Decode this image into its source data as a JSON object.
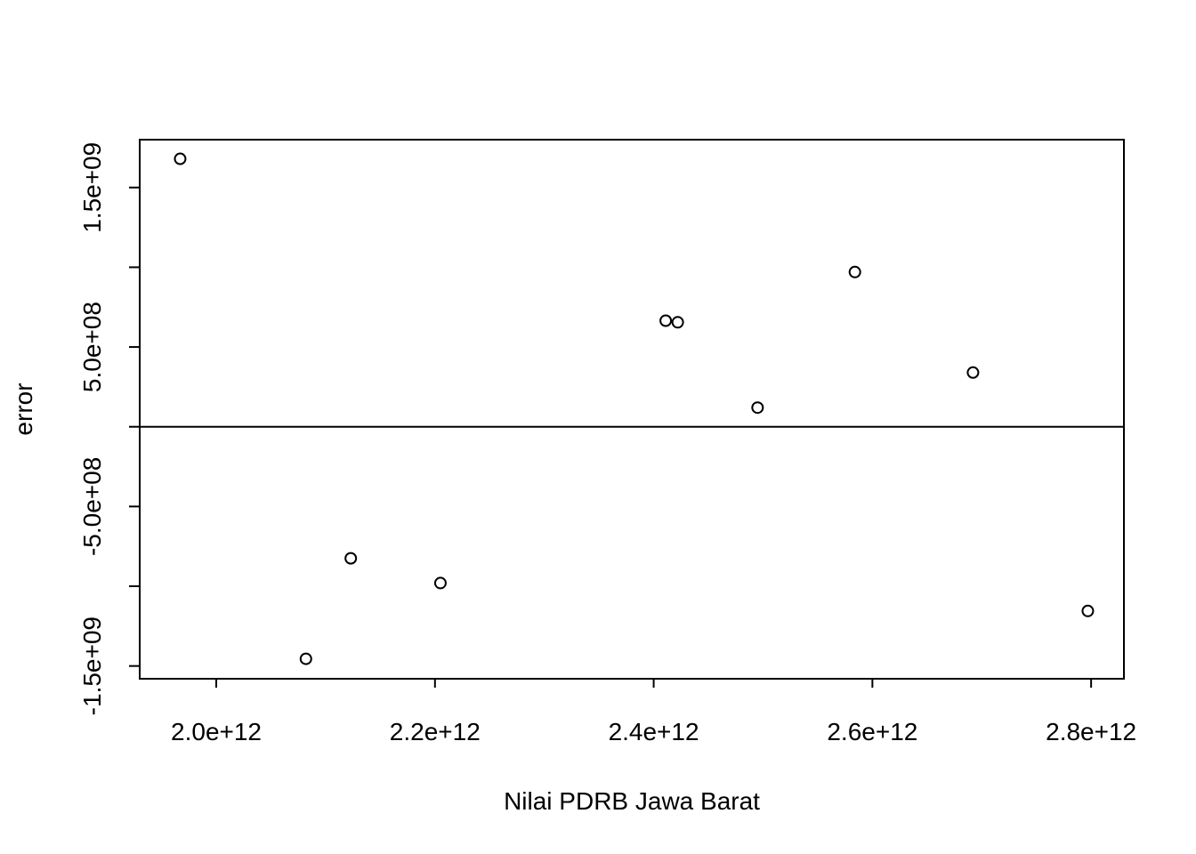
{
  "chart_data": {
    "type": "scatter",
    "title": "",
    "xlabel": "Nilai PDRB Jawa Barat",
    "ylabel": "error",
    "xlim": [
      1930000000000.0,
      2830000000000.0
    ],
    "ylim": [
      -1580000000.0,
      1800000000.0
    ],
    "x_ticks": [
      2000000000000.0,
      2200000000000.0,
      2400000000000.0,
      2600000000000.0,
      2800000000000.0
    ],
    "x_tick_labels": [
      "2.0e+12",
      "2.2e+12",
      "2.4e+12",
      "2.6e+12",
      "2.8e+12"
    ],
    "y_ticks": [
      -1500000000.0,
      -1000000000.0,
      -500000000.0,
      0,
      500000000.0,
      1000000000.0,
      1500000000.0
    ],
    "y_tick_labels": [
      "-1.5e+09",
      "",
      "-5.0e+08",
      "",
      "5.0e+08",
      "",
      "1.5e+09"
    ],
    "hline": 0,
    "grid": false,
    "point_color": "#000000",
    "points": [
      {
        "x": 1967000000000.0,
        "y": 1680000000.0
      },
      {
        "x": 2082000000000.0,
        "y": -1455000000.0
      },
      {
        "x": 2123000000000.0,
        "y": -825000000.0
      },
      {
        "x": 2205000000000.0,
        "y": -980000000.0
      },
      {
        "x": 2411000000000.0,
        "y": 665000000.0
      },
      {
        "x": 2422000000000.0,
        "y": 655000000.0
      },
      {
        "x": 2495000000000.0,
        "y": 120000000.0
      },
      {
        "x": 2584000000000.0,
        "y": 970000000.0
      },
      {
        "x": 2692000000000.0,
        "y": 340000000.0
      },
      {
        "x": 2797000000000.0,
        "y": -1155000000.0
      }
    ]
  }
}
